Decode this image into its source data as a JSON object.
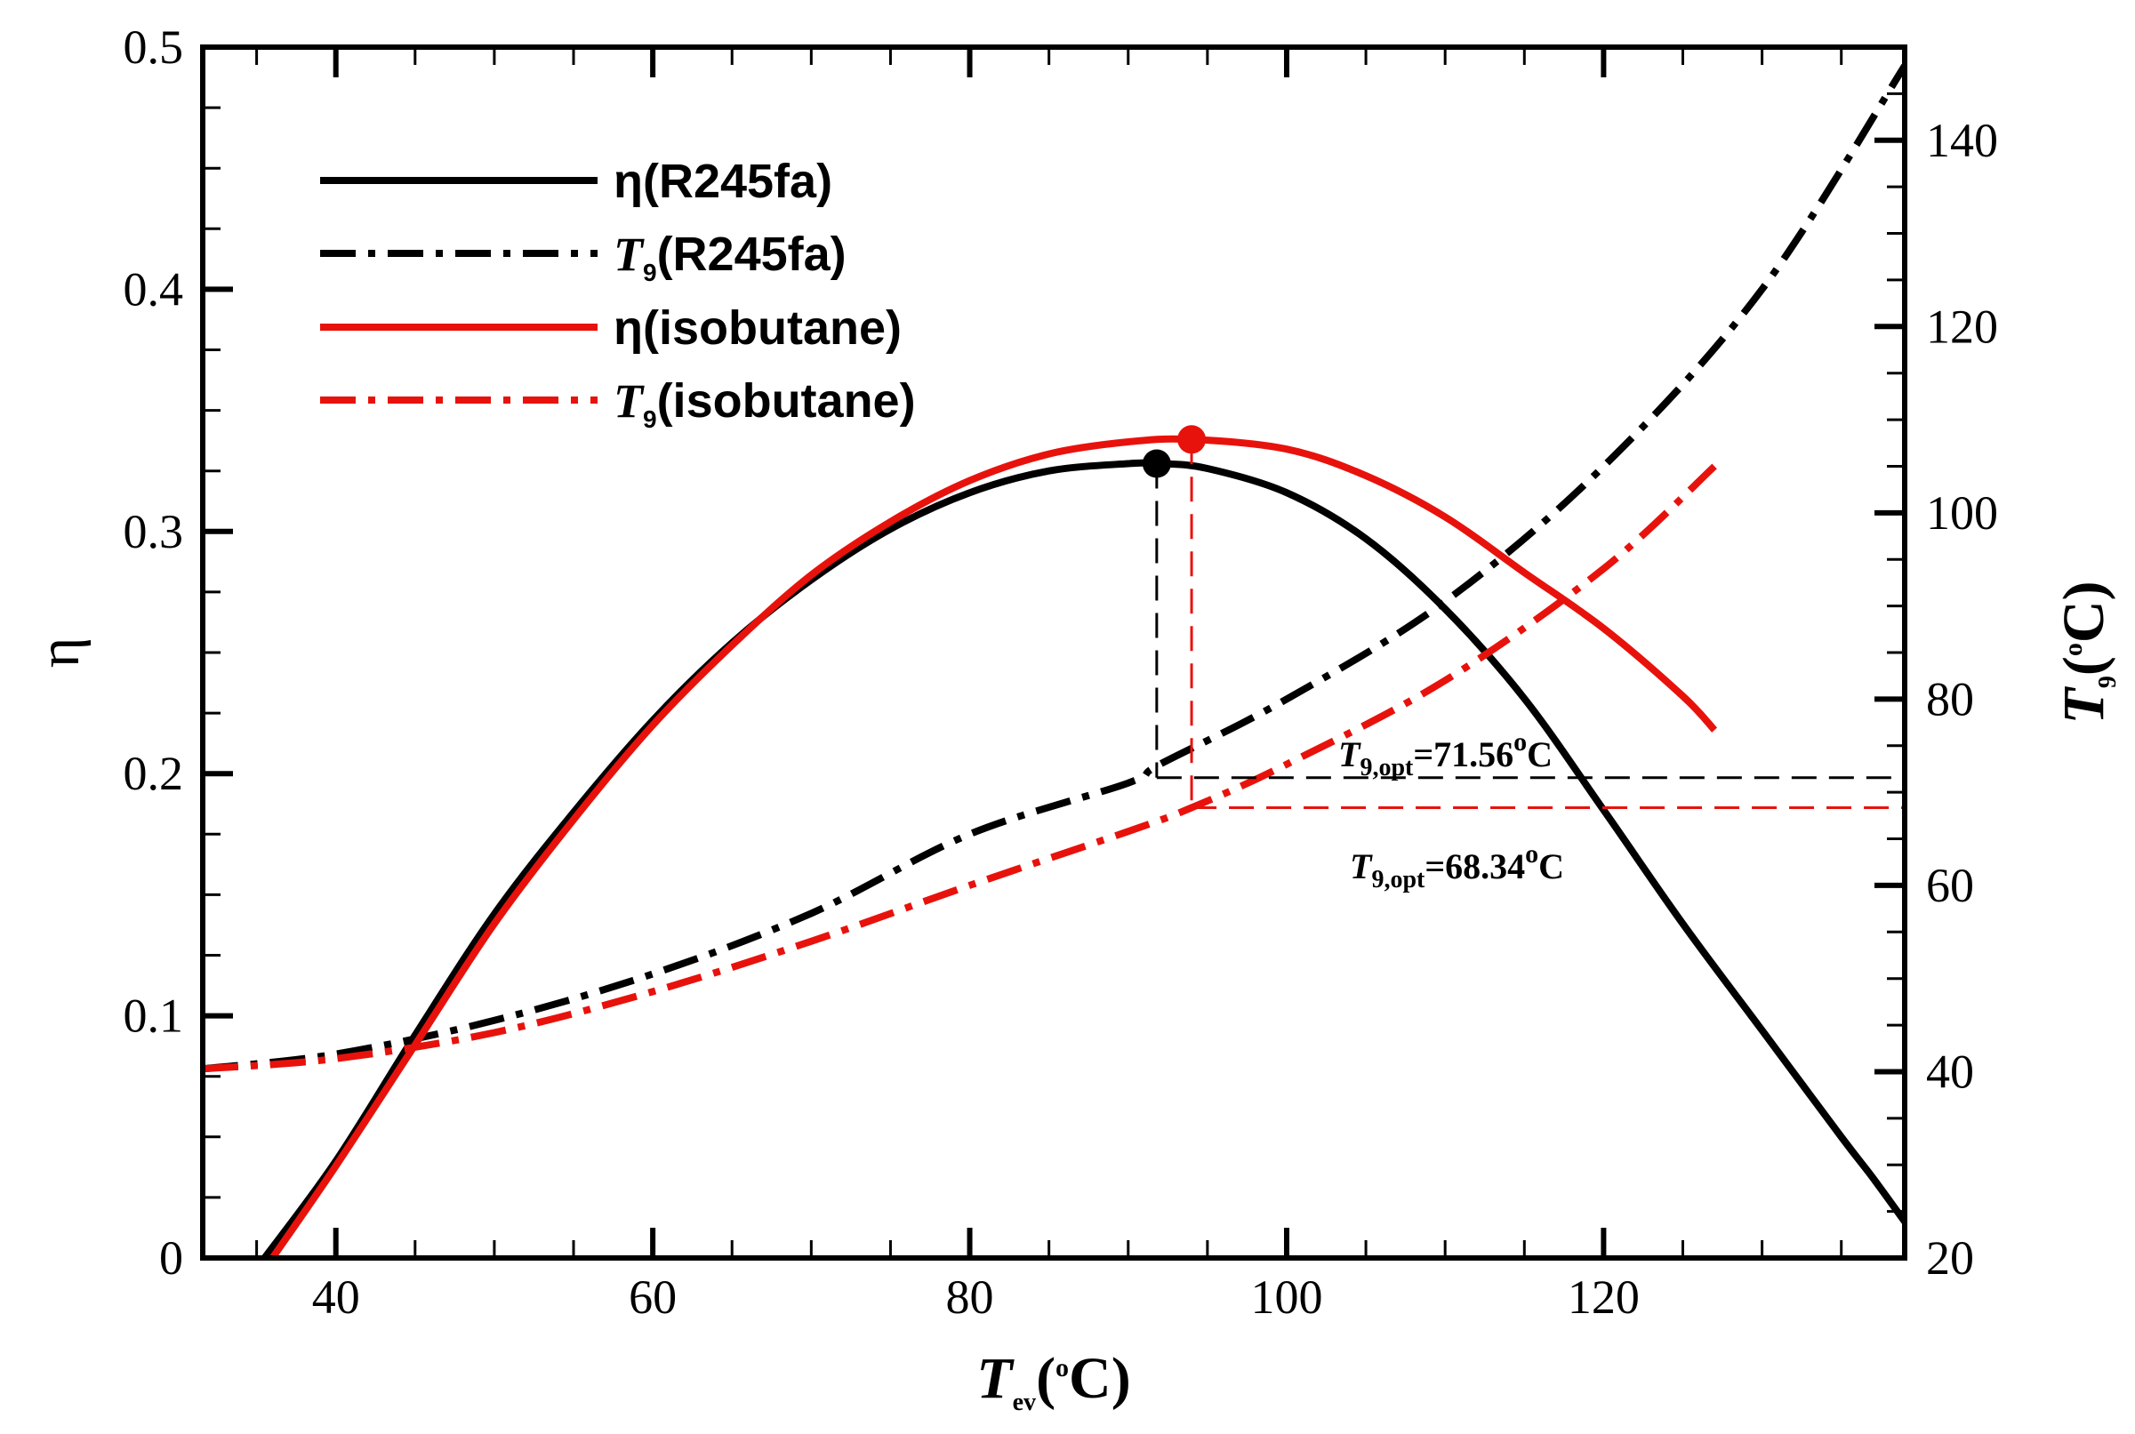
{
  "chart_data": {
    "type": "line",
    "title": "",
    "xlabel": {
      "main": "T",
      "sub": "ev",
      "pre": "(",
      "sup": "o",
      "post": "C)"
    },
    "ylabel_left": "η",
    "ylabel_right": {
      "main": "T",
      "sub": "9",
      "pre": "(",
      "sup": "o",
      "post": "C)"
    },
    "xlim": [
      31.6,
      139
    ],
    "ylim_left": [
      0,
      0.5
    ],
    "ylim_right": [
      20,
      150
    ],
    "x_ticks": [
      40,
      60,
      80,
      100,
      120
    ],
    "x_tick_labels": [
      "40",
      "60",
      "80",
      "100",
      "120"
    ],
    "y_left_ticks": [
      0,
      0.1,
      0.2,
      0.3,
      0.4,
      0.5
    ],
    "y_left_tick_labels": [
      "0",
      "0.1",
      "0.2",
      "0.3",
      "0.4",
      "0.5"
    ],
    "y_right_ticks": [
      20,
      40,
      60,
      80,
      100,
      120,
      140
    ],
    "y_right_tick_labels": [
      "20",
      "40",
      "60",
      "80",
      "100",
      "120",
      "140"
    ],
    "colors": {
      "r245fa": "#000000",
      "isobutane": "#e8120c"
    },
    "series": [
      {
        "name": "η(R245fa)",
        "label_main": "η(R245fa)",
        "label_italic": "",
        "label_sub": "",
        "label_rest": "",
        "axis": "left",
        "color": "#000000",
        "dash": "solid",
        "x": [
          35.5,
          40,
          45,
          50,
          55,
          60,
          65,
          70,
          75,
          80,
          85,
          90,
          92,
          95,
          100,
          105,
          110,
          115,
          120,
          125,
          130,
          135,
          137,
          139
        ],
        "y": [
          0,
          0.04,
          0.092,
          0.142,
          0.184,
          0.222,
          0.254,
          0.28,
          0.301,
          0.316,
          0.325,
          0.328,
          0.328,
          0.326,
          0.316,
          0.297,
          0.268,
          0.231,
          0.185,
          0.138,
          0.094,
          0.05,
          0.033,
          0.015
        ]
      },
      {
        "name": "T9(R245fa)",
        "label_main": "",
        "label_italic": "T",
        "label_sub": "9",
        "label_rest": "(R245fa)",
        "axis": "right",
        "color": "#000000",
        "dash": "dashdot",
        "x": [
          31.6,
          40,
          50,
          60,
          70,
          80,
          90,
          92,
          100,
          110,
          120,
          130,
          139
        ],
        "y": [
          40.3,
          41.9,
          45.5,
          50.5,
          57,
          65.5,
          71,
          73,
          80,
          90.5,
          105,
          124,
          148
        ]
      },
      {
        "name": "η(isobutane)",
        "label_main": "η(isobutane)",
        "label_italic": "",
        "label_sub": "",
        "label_rest": "",
        "axis": "left",
        "color": "#e8120c",
        "dash": "solid",
        "x": [
          36,
          40,
          45,
          50,
          55,
          60,
          65,
          70,
          75,
          80,
          85,
          90,
          94,
          100,
          105,
          110,
          115,
          120,
          125,
          127
        ],
        "y": [
          0,
          0.038,
          0.088,
          0.138,
          0.181,
          0.22,
          0.253,
          0.282,
          0.304,
          0.321,
          0.332,
          0.337,
          0.338,
          0.334,
          0.323,
          0.306,
          0.283,
          0.26,
          0.232,
          0.218
        ]
      },
      {
        "name": "T9(isobutane)",
        "label_main": "",
        "label_italic": "T",
        "label_sub": "9",
        "label_rest": "(isobutane)",
        "axis": "right",
        "color": "#e8120c",
        "dash": "dashdot",
        "x": [
          31.6,
          40,
          50,
          60,
          70,
          80,
          90,
          94,
          100,
          110,
          120,
          127
        ],
        "y": [
          40.3,
          41.4,
          44.2,
          48.6,
          54,
          60,
          65.8,
          68.34,
          73,
          82,
          94,
          105
        ]
      }
    ],
    "optimum_points": [
      {
        "series": "R245fa",
        "x": 91.8,
        "eta": 0.328,
        "color": "#000000"
      },
      {
        "series": "isobutane",
        "x": 94.0,
        "eta": 0.338,
        "color": "#e8120c"
      }
    ],
    "annotations": [
      {
        "id": "r245fa",
        "main": "T",
        "sub": "9,opt",
        "value": "=71.56",
        "sup": "o",
        "unit": "C",
        "t9": 71.56,
        "color": "#000000"
      },
      {
        "id": "isobutane",
        "main": "T",
        "sub": "9,opt",
        "value": "=68.34",
        "sup": "o",
        "unit": "C",
        "t9": 68.34,
        "color": "#e8120c"
      }
    ],
    "legend_position": "top-left"
  }
}
